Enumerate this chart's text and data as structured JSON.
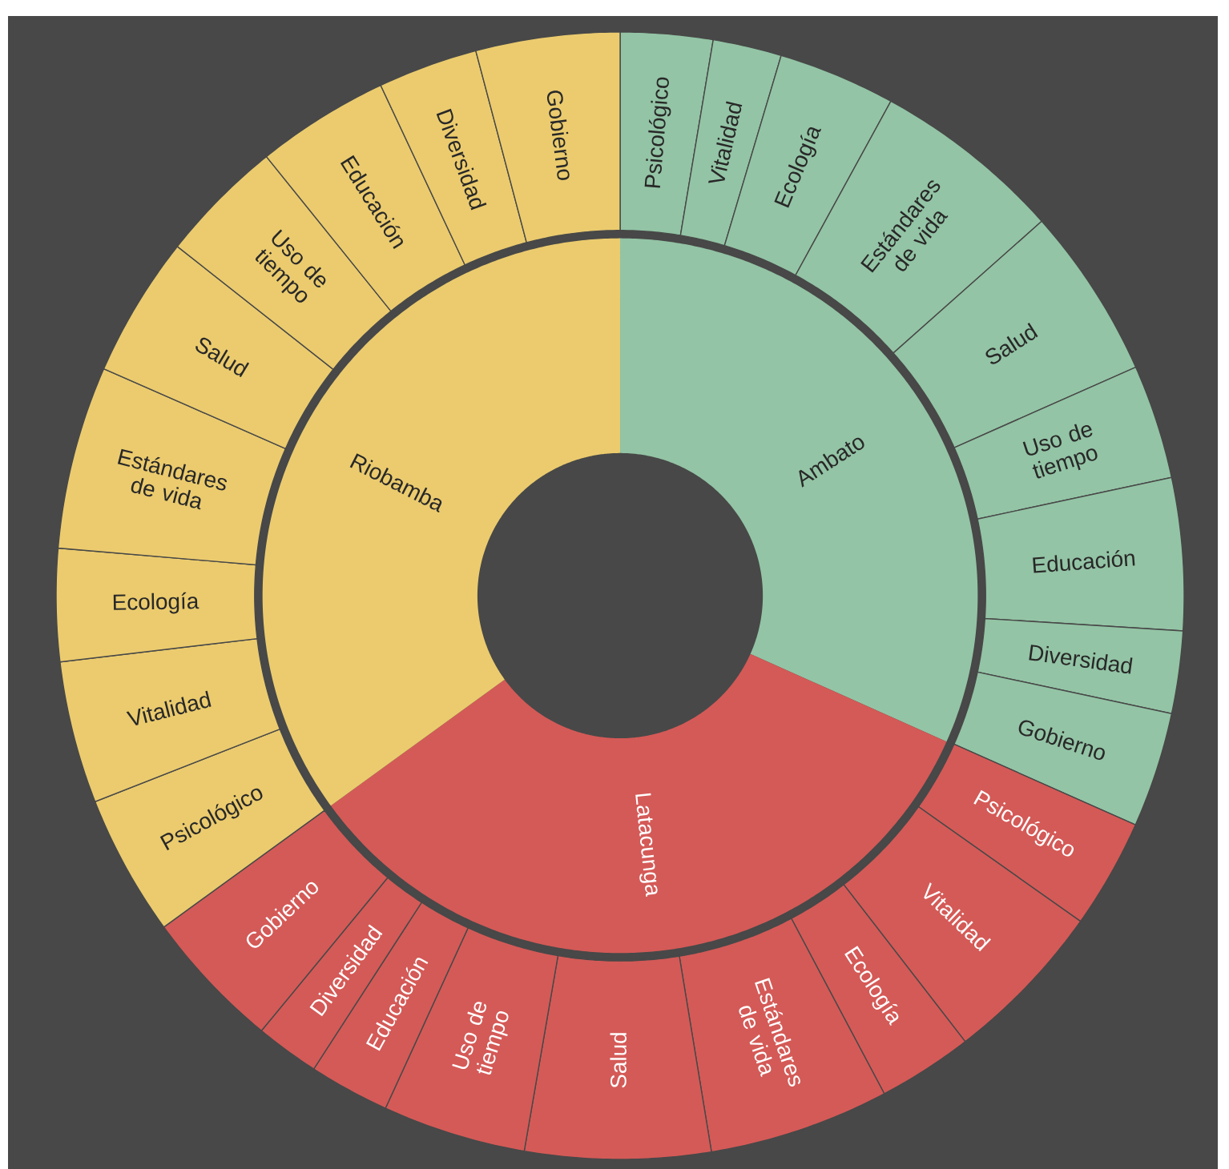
{
  "chart_data": [
    {
      "type": "donut",
      "categories": [
        "Ambato",
        "Latacunga",
        "Riobamba"
      ],
      "values": [
        31.7,
        33.3,
        35.0
      ],
      "colors": [
        "#93c4a5",
        "#d45a57",
        "#ebcb6e"
      ]
    },
    {
      "type": "donut",
      "categories": [
        "Psicológico",
        "Vitalidad",
        "Ecología",
        "Estándares de vida",
        "Salud",
        "Uso de tiempo",
        "Educación",
        "Diversidad",
        "Gobierno",
        "Psicológico",
        "Vitalidad",
        "Ecología",
        "Estándares de vida",
        "Salud",
        "Uso de tiempo",
        "Educación",
        "Diversidad",
        "Gobierno",
        "Psicológico",
        "Vitalidad",
        "Ecología",
        "Estándares de vida",
        "Salud",
        "Uso de tiempo",
        "Educación",
        "Diversidad",
        "Gobierno"
      ],
      "values": [
        2.64,
        1.97,
        3.36,
        5.47,
        4.92,
        3.28,
        4.36,
        2.36,
        3.31,
        3.14,
        4.72,
        2.72,
        5.17,
        5.31,
        4.11,
        2.31,
        1.83,
        4.03,
        4.05,
        4.08,
        3.22,
        5.25,
        4.04,
        3.58,
        3.81,
        2.86,
        4.12
      ],
      "colors": [
        "#93c4a5",
        "#93c4a5",
        "#93c4a5",
        "#93c4a5",
        "#93c4a5",
        "#93c4a5",
        "#93c4a5",
        "#93c4a5",
        "#93c4a5",
        "#d45a57",
        "#d45a57",
        "#d45a57",
        "#d45a57",
        "#d45a57",
        "#d45a57",
        "#d45a57",
        "#d45a57",
        "#d45a57",
        "#ebcb6e",
        "#ebcb6e",
        "#ebcb6e",
        "#ebcb6e",
        "#ebcb6e",
        "#ebcb6e",
        "#ebcb6e",
        "#ebcb6e",
        "#ebcb6e"
      ]
    }
  ]
}
